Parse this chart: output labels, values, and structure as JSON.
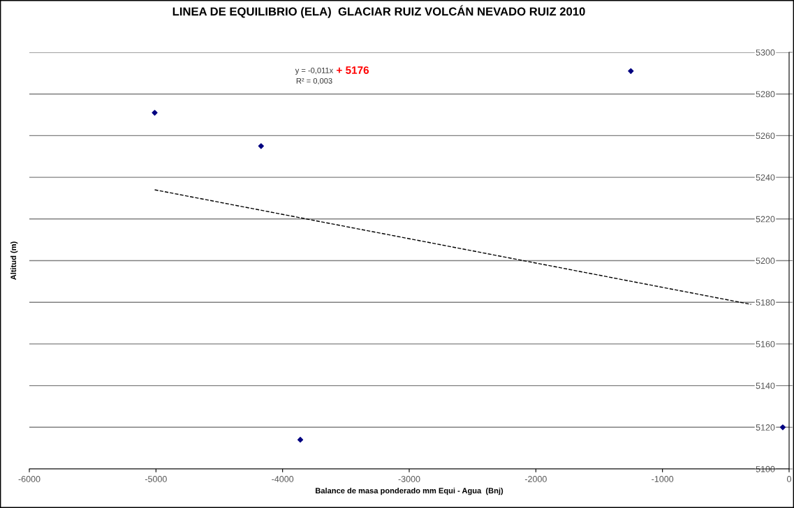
{
  "chart_data": {
    "type": "scatter",
    "title": "LINEA DE EQUILIBRIO (ELA)  GLACIAR RUIZ VOLCÁN NEVADO RUIZ 2010",
    "xlabel": "Balance de masa ponderado mm Equi - Agua  (Bnj)",
    "ylabel": "Altitud (m)",
    "series": [
      {
        "color": "#000080",
        "marker": "diamond",
        "x": [
          -5010,
          -4170,
          -3860,
          -1250,
          -50
        ],
        "values": [
          5271,
          5255,
          5114,
          5291,
          5120
        ]
      },
      {
        "type": "line",
        "color": "#000000",
        "line_style": "dashed",
        "marker": "none",
        "x": [
          -5010,
          -300
        ],
        "values": [
          5234,
          5179
        ]
      }
    ],
    "annotations": [
      "y = -0,011x",
      "+ 5176",
      "R² = 0,003"
    ],
    "xlim": [
      -6000,
      0
    ],
    "xticks": [
      -6000,
      -5000,
      -4000,
      -3000,
      -2000,
      -1000,
      0
    ],
    "ylim": [
      5100,
      5300
    ],
    "yticks": [
      5100,
      5120,
      5140,
      5160,
      5180,
      5200,
      5220,
      5240,
      5260,
      5280,
      5300
    ],
    "grid": "y",
    "legend": false
  }
}
